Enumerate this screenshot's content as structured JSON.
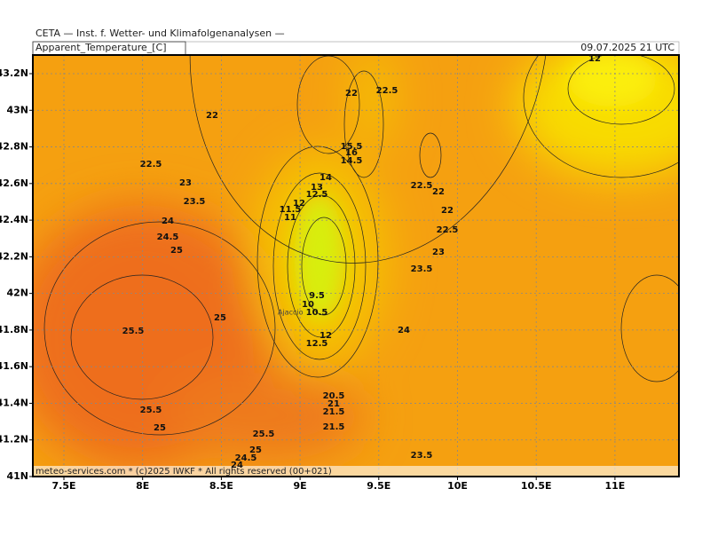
{
  "header": {
    "title": "CETA — Inst. f. Wetter- und Klimafolgenanalysen —",
    "variable": "Apparent_Temperature_[C]",
    "valid_time": "09.07.2025 21 UTC"
  },
  "map": {
    "lat_ticks": [
      {
        "value": 43.2,
        "label": "43.2N"
      },
      {
        "value": 43,
        "label": "43N"
      },
      {
        "value": 42.8,
        "label": "42.8N"
      },
      {
        "value": 42.6,
        "label": "42.6N"
      },
      {
        "value": 42.4,
        "label": "42.4N"
      },
      {
        "value": 42.2,
        "label": "42.2N"
      },
      {
        "value": 42,
        "label": "42N"
      },
      {
        "value": 41.8,
        "label": "41.8N"
      },
      {
        "value": 41.6,
        "label": "41.6N"
      },
      {
        "value": 41.4,
        "label": "41.4N"
      },
      {
        "value": 41.2,
        "label": "41.2N"
      },
      {
        "value": 41,
        "label": "41N"
      }
    ],
    "lon_ticks": [
      {
        "value": 7.5,
        "label": "7.5E"
      },
      {
        "value": 8,
        "label": "8E"
      },
      {
        "value": 8.5,
        "label": "8.5E"
      },
      {
        "value": 9,
        "label": "9E"
      },
      {
        "value": 9.5,
        "label": "9.5E"
      },
      {
        "value": 10,
        "label": "10E"
      },
      {
        "value": 10.5,
        "label": "10.5E"
      },
      {
        "value": 11,
        "label": "11E"
      }
    ],
    "contour_labels": [
      22,
      22.5,
      23,
      23.5,
      24,
      24.5,
      25,
      25.5,
      25,
      25.5,
      25,
      25.5,
      25,
      24.5,
      24,
      22,
      22.5,
      15.5,
      16,
      14.5,
      14,
      13,
      12.5,
      12,
      11.5,
      11,
      9.5,
      10,
      10.5,
      12,
      12.5,
      20.5,
      21,
      21.5,
      21.5,
      22.5,
      22,
      22,
      22.5,
      23,
      23.5,
      24,
      23.5,
      12
    ],
    "place_label": "Ajaccio",
    "footer": "meteo-services.com * (c)2025 IWKF * All rights reserved (00+021)"
  }
}
